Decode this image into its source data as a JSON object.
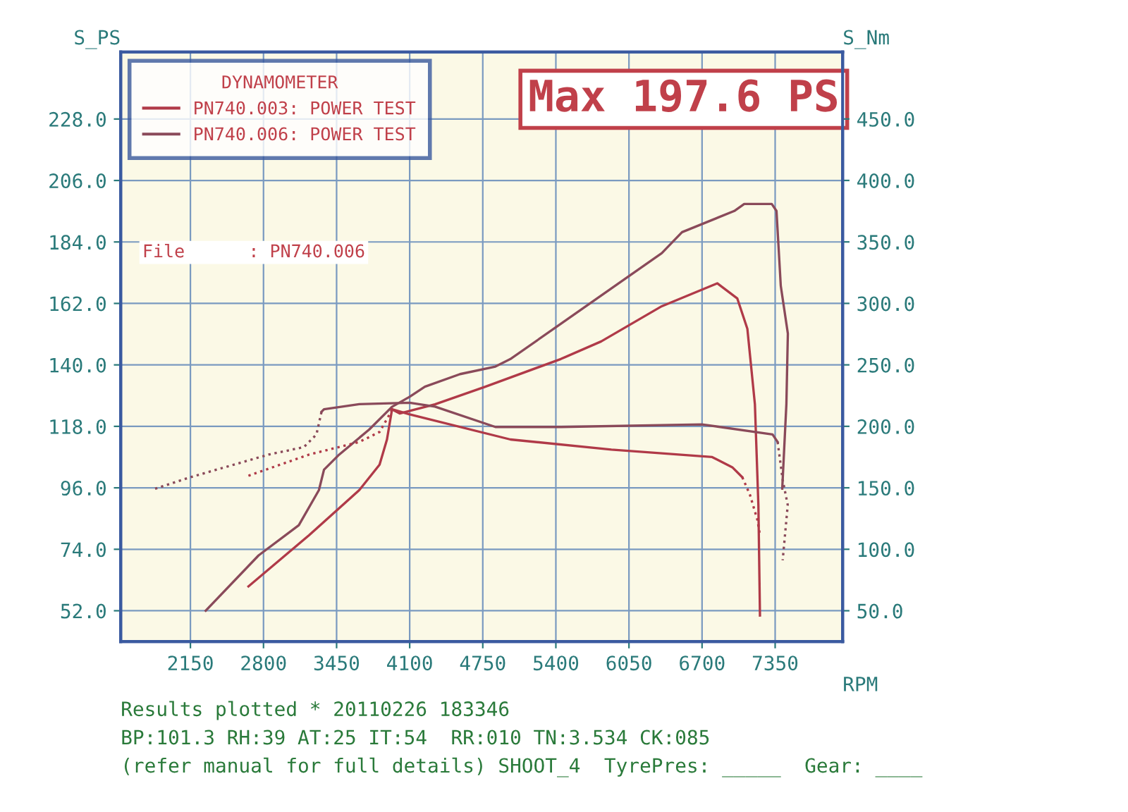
{
  "chart_data": {
    "type": "line",
    "legend_title": "DYNAMOMETER",
    "xlabel": "RPM",
    "ylabel": "S_PS",
    "y2label": "S_Nm",
    "annotations": [
      "Max 197.6 PS",
      "File      : PN740.006",
      "Results plotted * 20110226 183346",
      "BP:101.3 RH:39 AT:25 IT:54  RR:010 TN:3.534 CK:085",
      "(refer manual for full details) SHOOT_4  TyrePres: _____  Gear: ____"
    ],
    "xlim": [
      1530,
      7950
    ],
    "ylim": [
      41,
      252
    ],
    "y2lim": [
      25,
      504.5
    ],
    "xticks": [
      2150,
      2800,
      3450,
      4100,
      4750,
      5400,
      6050,
      6700,
      7350
    ],
    "yticks": [
      {
        "value": 52,
        "label": "52.0"
      },
      {
        "value": 74,
        "label": "74.0"
      },
      {
        "value": 96,
        "label": "96.0"
      },
      {
        "value": 118,
        "label": "118.0"
      },
      {
        "value": 140,
        "label": "140.0"
      },
      {
        "value": 162,
        "label": "162.0"
      },
      {
        "value": 184,
        "label": "184.0"
      },
      {
        "value": 206,
        "label": "206.0"
      },
      {
        "value": 228,
        "label": "228.0"
      }
    ],
    "y2ticks": [
      {
        "value": 50,
        "label": "50.0"
      },
      {
        "value": 100,
        "label": "100.0"
      },
      {
        "value": 150,
        "label": "150.0"
      },
      {
        "value": 200,
        "label": "200.0"
      },
      {
        "value": 250,
        "label": "250.0"
      },
      {
        "value": 300,
        "label": "300.0"
      },
      {
        "value": 350,
        "label": "350.0"
      },
      {
        "value": 400,
        "label": "400.0"
      },
      {
        "value": 450,
        "label": "450.0"
      }
    ],
    "grid": true,
    "legend": "top left",
    "marker": "none",
    "series": [
      {
        "name": "PN740.003: POWER TEST",
        "color": "#b03a48",
        "line_style": "solid",
        "x": [
          2666,
          3204,
          3652,
          3832,
          3898,
          3943,
          4011,
          4325,
          4773,
          5444,
          5803,
          6342,
          6835,
          7013,
          7103,
          7170,
          7201,
          7215
        ],
        "values": [
          60.7,
          79.0,
          95.2,
          104.3,
          113.3,
          124.1,
          122.6,
          125.9,
          132.2,
          142.1,
          148.4,
          161.0,
          169.2,
          163.8,
          152.9,
          125.9,
          89.8,
          50.3
        ]
      },
      {
        "name": "PN740.006: POWER TEST",
        "color": "#8a4a5a",
        "line_style": "solid",
        "x": [
          2286,
          2756,
          3114,
          3293,
          3338,
          3473,
          3741,
          3943,
          4100,
          4235,
          4548,
          4862,
          4996,
          5444,
          5894,
          6342,
          6522,
          6987,
          7075,
          7320,
          7362,
          7400,
          7463,
          7450,
          7413
        ],
        "values": [
          52.0,
          71.8,
          82.6,
          95.2,
          102.5,
          107.9,
          116.9,
          125.0,
          128.6,
          132.2,
          136.7,
          139.4,
          142.1,
          154.7,
          167.4,
          180.0,
          187.5,
          195.1,
          197.6,
          197.6,
          195.1,
          168.3,
          151.2,
          126.0,
          95.7
        ]
      },
      {
        "color": "#b03a48",
        "axis": "y2",
        "line_style": "dotted",
        "x": [
          2666,
          3204,
          3652,
          3832,
          3921,
          3943
        ],
        "values": [
          159.8,
          177.0,
          187.3,
          195.4,
          209.7,
          213.9
        ]
      },
      {
        "color": "#b03a48",
        "axis": "y2",
        "line_style": "solid",
        "x": [
          3943,
          4100,
          4996,
          5894,
          6790,
          6969,
          7058
        ],
        "values": [
          213.9,
          209.7,
          189.3,
          181.1,
          175.0,
          166.7,
          158.6
        ]
      },
      {
        "color": "#b03a48",
        "axis": "y2",
        "line_style": "dotted",
        "x": [
          7058,
          7126,
          7193,
          7215
        ],
        "values": [
          158.6,
          144.3,
          123.7,
          111.5
        ]
      },
      {
        "color": "#8a4a5a",
        "axis": "y2",
        "line_style": "dotted",
        "x": [
          1836,
          2150,
          2845,
          3159,
          3271,
          3316
        ],
        "values": [
          149.2,
          158.6,
          177.0,
          183.1,
          193.4,
          211.8
        ]
      },
      {
        "color": "#8a4a5a",
        "axis": "y2",
        "line_style": "solid",
        "x": [
          3316,
          3338,
          3652,
          4100,
          4325,
          4862,
          5444,
          6698,
          7327,
          7372
        ],
        "values": [
          211.8,
          213.9,
          218.0,
          219.2,
          216.0,
          199.5,
          199.5,
          201.6,
          193.4,
          187.3
        ]
      },
      {
        "color": "#8a4a5a",
        "axis": "y2",
        "line_style": "dotted",
        "x": [
          7372,
          7417,
          7462,
          7417
        ],
        "values": [
          187.3,
          156.5,
          136.0,
          91.0
        ]
      }
    ]
  }
}
